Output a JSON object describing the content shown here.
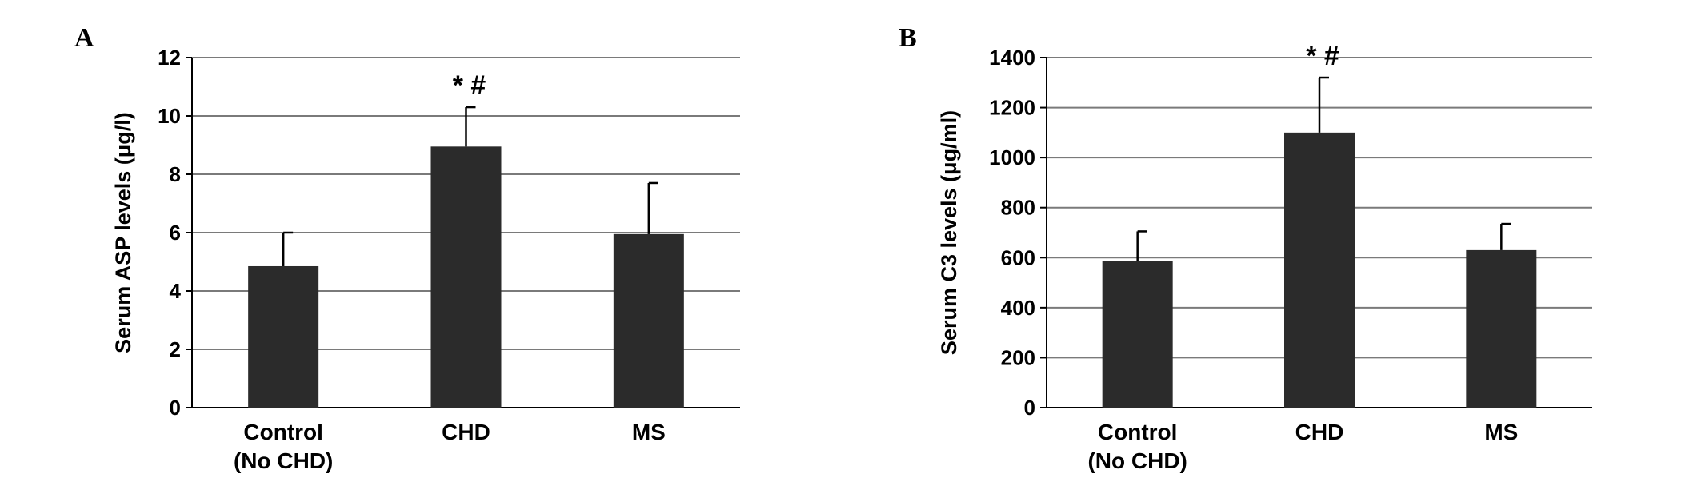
{
  "chart_data": [
    {
      "panel": "A",
      "type": "bar",
      "categories": [
        [
          "Control",
          "(No CHD)"
        ],
        [
          "CHD"
        ],
        [
          "MS"
        ]
      ],
      "values": [
        4.85,
        8.95,
        5.95
      ],
      "errors": [
        1.15,
        1.35,
        1.75
      ],
      "annotations": [
        "",
        "* #",
        ""
      ],
      "ylabel": "Serum ASP levels (μg/l)",
      "ylim": [
        0,
        12
      ],
      "yticks": [
        0,
        2,
        4,
        6,
        8,
        10,
        12
      ],
      "grid": true,
      "bar_color": "#2b2b2b"
    },
    {
      "panel": "B",
      "type": "bar",
      "categories": [
        [
          "Control",
          "(No CHD)"
        ],
        [
          "CHD"
        ],
        [
          "MS"
        ]
      ],
      "values": [
        585,
        1100,
        630
      ],
      "errors": [
        120,
        220,
        105
      ],
      "annotations": [
        "",
        "* #",
        ""
      ],
      "ylabel": "Serum C3 levels (μg/ml)",
      "ylim": [
        0,
        1400
      ],
      "yticks": [
        0,
        200,
        400,
        600,
        800,
        1000,
        1200,
        1400
      ],
      "grid": true,
      "bar_color": "#2b2b2b"
    }
  ]
}
